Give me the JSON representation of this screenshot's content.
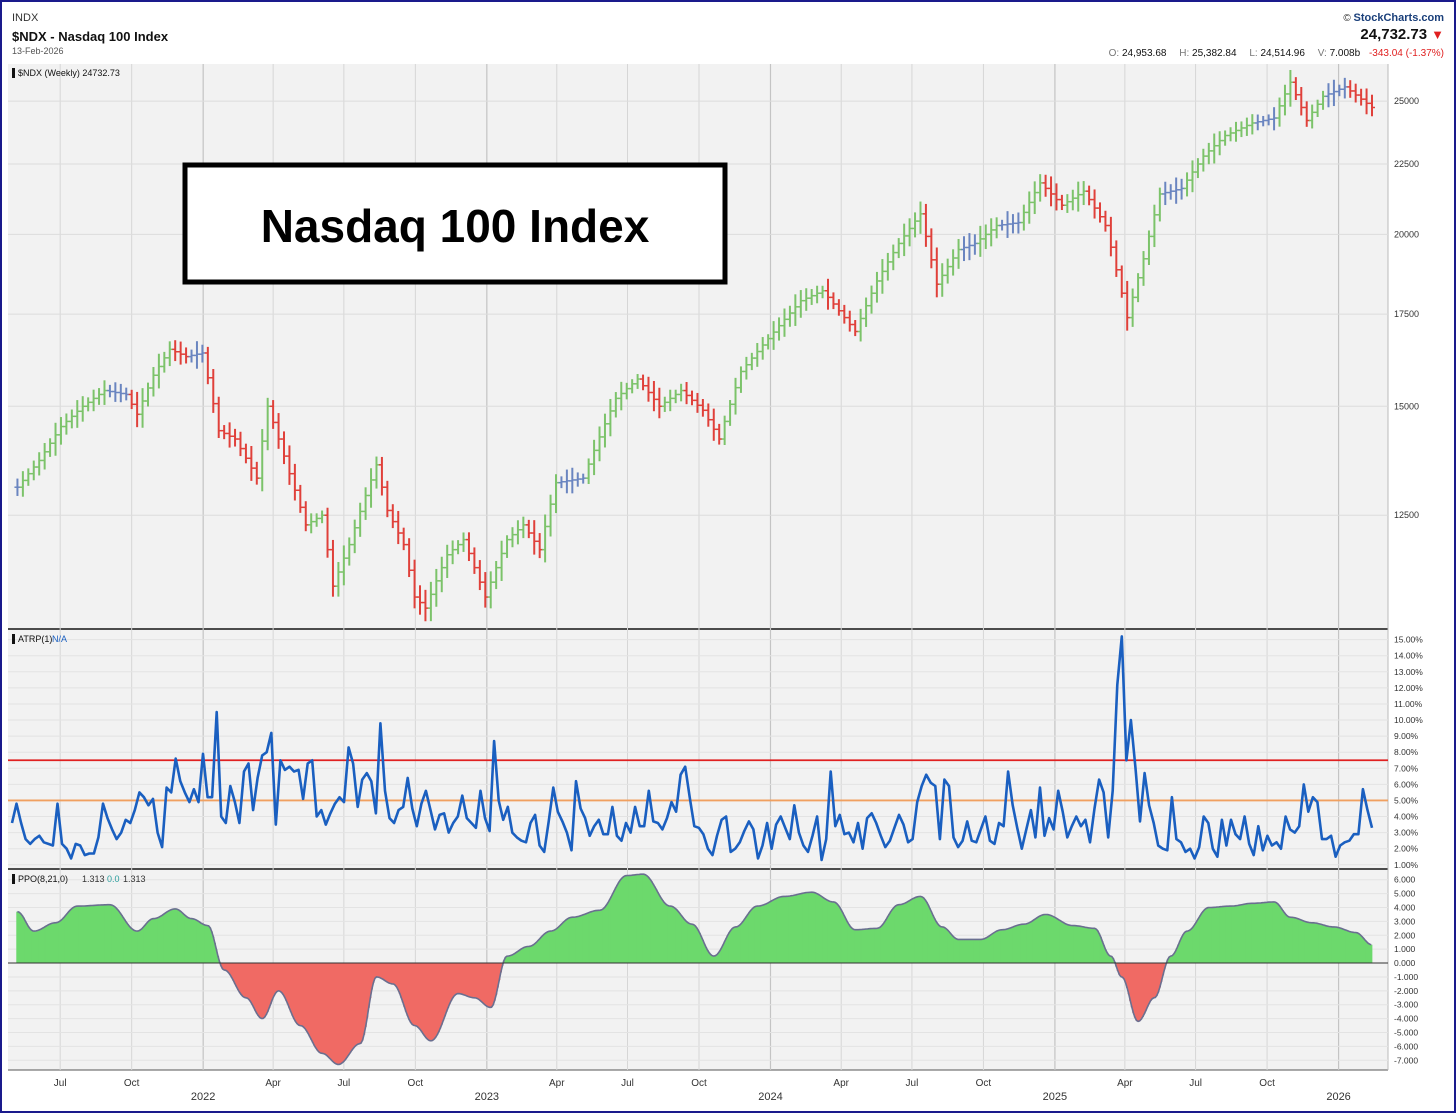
{
  "header": {
    "symbol_code": "INDX",
    "title": "$NDX - Nasdaq 100 Index",
    "date": "13-Feb-2026",
    "copyright": "©",
    "brand": "StockCharts.com",
    "last_price": "24,732.73",
    "ohlc": {
      "open_label": "O:",
      "open": "24,953.68",
      "high_label": "H:",
      "high": "25,382.84",
      "low_label": "L:",
      "low": "24,514.96",
      "volume_label": "V:",
      "volume": "7.008b",
      "change": "-343.04 (-1.37%)"
    },
    "colors": {
      "down": "#e02020",
      "brand": "#1a3f7a"
    }
  },
  "chart_data": [
    {
      "type": "ohlc-bar",
      "panel_label": "$NDX (Weekly) 24732.73",
      "annotation": "Nasdaq 100 Index",
      "y_scale": "log",
      "y_ticks": [
        12500,
        15000,
        17500,
        20000,
        22500,
        25000
      ],
      "y_tick_labels": [
        "12500",
        "15000",
        "17500",
        "20000",
        "22500",
        "25000"
      ],
      "colors": {
        "up": "#7cc36a",
        "down": "#e0403a",
        "neutral": "#6a85c0"
      },
      "weekly_close": [
        {
          "date": "2021-05-07",
          "close": 13100
        },
        {
          "date": "2021-06-04",
          "close": 13700
        },
        {
          "date": "2021-07-02",
          "close": 14500
        },
        {
          "date": "2021-07-30",
          "close": 15000
        },
        {
          "date": "2021-08-27",
          "close": 15400
        },
        {
          "date": "2021-09-24",
          "close": 15300
        },
        {
          "date": "2021-10-08",
          "close": 14800
        },
        {
          "date": "2021-10-29",
          "close": 15800
        },
        {
          "date": "2021-11-19",
          "close": 16500
        },
        {
          "date": "2021-12-10",
          "close": 16300
        },
        {
          "date": "2021-12-31",
          "close": 16400
        },
        {
          "date": "2022-01-21",
          "close": 14400
        },
        {
          "date": "2022-02-11",
          "close": 14200
        },
        {
          "date": "2022-03-11",
          "close": 13300
        },
        {
          "date": "2022-03-25",
          "close": 15000
        },
        {
          "date": "2022-04-22",
          "close": 13400
        },
        {
          "date": "2022-05-13",
          "close": 12300
        },
        {
          "date": "2022-06-03",
          "close": 12500
        },
        {
          "date": "2022-06-17",
          "close": 11100
        },
        {
          "date": "2022-07-08",
          "close": 11900
        },
        {
          "date": "2022-08-12",
          "close": 13600
        },
        {
          "date": "2022-08-26",
          "close": 12600
        },
        {
          "date": "2022-09-16",
          "close": 11900
        },
        {
          "date": "2022-09-30",
          "close": 10900
        },
        {
          "date": "2022-10-14",
          "close": 10700
        },
        {
          "date": "2022-11-11",
          "close": 11700
        },
        {
          "date": "2022-12-02",
          "close": 12000
        },
        {
          "date": "2022-12-30",
          "close": 10900
        },
        {
          "date": "2023-01-27",
          "close": 12000
        },
        {
          "date": "2023-02-17",
          "close": 12300
        },
        {
          "date": "2023-03-10",
          "close": 11800
        },
        {
          "date": "2023-03-31",
          "close": 13200
        },
        {
          "date": "2023-05-05",
          "close": 13300
        },
        {
          "date": "2023-06-16",
          "close": 15200
        },
        {
          "date": "2023-07-14",
          "close": 15700
        },
        {
          "date": "2023-08-11",
          "close": 15000
        },
        {
          "date": "2023-09-08",
          "close": 15400
        },
        {
          "date": "2023-10-06",
          "close": 14900
        },
        {
          "date": "2023-10-27",
          "close": 14200
        },
        {
          "date": "2023-11-24",
          "close": 15900
        },
        {
          "date": "2023-12-29",
          "close": 16800
        },
        {
          "date": "2024-02-09",
          "close": 17900
        },
        {
          "date": "2024-03-08",
          "close": 18200
        },
        {
          "date": "2024-04-19",
          "close": 17000
        },
        {
          "date": "2024-05-17",
          "close": 18500
        },
        {
          "date": "2024-06-14",
          "close": 19700
        },
        {
          "date": "2024-07-12",
          "close": 20700
        },
        {
          "date": "2024-08-02",
          "close": 18400
        },
        {
          "date": "2024-08-30",
          "close": 19500
        },
        {
          "date": "2024-09-20",
          "close": 19700
        },
        {
          "date": "2024-10-18",
          "close": 20300
        },
        {
          "date": "2024-11-15",
          "close": 20400
        },
        {
          "date": "2024-12-13",
          "close": 21800
        },
        {
          "date": "2025-01-10",
          "close": 21000
        },
        {
          "date": "2025-02-07",
          "close": 21500
        },
        {
          "date": "2025-03-07",
          "close": 20300
        },
        {
          "date": "2025-04-04",
          "close": 17400
        },
        {
          "date": "2025-04-25",
          "close": 19200
        },
        {
          "date": "2025-05-16",
          "close": 21400
        },
        {
          "date": "2025-06-13",
          "close": 21600
        },
        {
          "date": "2025-07-11",
          "close": 22800
        },
        {
          "date": "2025-08-08",
          "close": 23600
        },
        {
          "date": "2025-09-12",
          "close": 24100
        },
        {
          "date": "2025-10-10",
          "close": 24300
        },
        {
          "date": "2025-10-31",
          "close": 25800
        },
        {
          "date": "2025-11-21",
          "close": 24200
        },
        {
          "date": "2025-12-12",
          "close": 25200
        },
        {
          "date": "2026-01-09",
          "close": 25600
        },
        {
          "date": "2026-02-13",
          "close": 24732.73
        }
      ]
    },
    {
      "type": "line",
      "panel_label": "ATRP(1)",
      "panel_value": "N/A",
      "y_range": [
        0.8,
        15.6
      ],
      "y_tick_labels": [
        "1.00%",
        "2.00%",
        "3.00%",
        "4.00%",
        "5.00%",
        "6.00%",
        "7.00%",
        "8.00%",
        "9.00%",
        "10.00%",
        "11.00%",
        "12.00%",
        "13.00%",
        "14.00%",
        "15.00%"
      ],
      "reference_lines": [
        {
          "value": 7.5,
          "color": "#e02020"
        },
        {
          "value": 5.0,
          "color": "#f0a060"
        }
      ],
      "color": "#1a5fc0",
      "series_pct": [
        3.6,
        4.8,
        3.6,
        2.6,
        2.3,
        2.6,
        2.8,
        2.4,
        2.3,
        2.2,
        4.8,
        2.3,
        2.0,
        1.4,
        2.3,
        2.2,
        1.6,
        1.7,
        1.7,
        2.7,
        4.8,
        3.9,
        3.2,
        2.6,
        3.0,
        3.8,
        3.6,
        4.4,
        5.5,
        5.2,
        4.7,
        5.1,
        3.0,
        2.1,
        5.8,
        5.5,
        7.6,
        6.2,
        5.5,
        4.9,
        5.7,
        4.9,
        7.9,
        5.2,
        5.2,
        10.5,
        4.0,
        3.6,
        5.9,
        4.9,
        3.6,
        6.8,
        7.3,
        4.4,
        6.4,
        7.8,
        8.0,
        9.2,
        3.5,
        7.5,
        6.9,
        7.1,
        6.8,
        6.9,
        5.1,
        7.3,
        7.5,
        4.0,
        4.4,
        3.5,
        4.2,
        4.8,
        5.2,
        4.9,
        8.3,
        7.3,
        4.6,
        6.3,
        6.7,
        6.2,
        4.2,
        9.8,
        5.6,
        3.9,
        3.6,
        4.4,
        4.6,
        6.4,
        4.5,
        3.4,
        4.8,
        5.6,
        4.4,
        3.2,
        4.1,
        4.2,
        3.0,
        3.6,
        4.0,
        5.3,
        3.9,
        3.6,
        3.3,
        5.6,
        3.9,
        3.1,
        8.7,
        5.0,
        3.8,
        4.6,
        3.0,
        2.7,
        2.5,
        2.4,
        3.6,
        4.1,
        2.2,
        1.8,
        3.7,
        5.8,
        4.3,
        3.7,
        3.0,
        1.9,
        6.2,
        4.5,
        3.9,
        2.8,
        3.4,
        3.8,
        2.9,
        2.9,
        4.6,
        2.8,
        2.5,
        3.6,
        3.0,
        4.6,
        3.4,
        3.4,
        5.6,
        3.7,
        3.6,
        3.2,
        3.9,
        4.9,
        4.3,
        6.6,
        7.1,
        5.2,
        3.4,
        3.3,
        2.9,
        2.0,
        1.6,
        2.8,
        3.8,
        4.0,
        1.8,
        2.0,
        2.4,
        3.1,
        3.7,
        3.2,
        1.4,
        2.2,
        3.6,
        2.0,
        3.5,
        4.0,
        3.3,
        2.6,
        4.7,
        3.0,
        2.2,
        1.8,
        2.8,
        4.0,
        1.3,
        2.6,
        6.8,
        3.4,
        4.1,
        2.9,
        3.0,
        2.4,
        3.6,
        2.0,
        3.9,
        4.2,
        3.6,
        2.8,
        2.1,
        2.5,
        3.3,
        4.1,
        3.5,
        2.4,
        2.6,
        4.9,
        5.9,
        6.6,
        6.1,
        5.9,
        2.6,
        6.3,
        5.9,
        2.7,
        2.1,
        2.5,
        3.7,
        2.5,
        2.4,
        3.2,
        4.0,
        2.5,
        2.3,
        3.6,
        3.4,
        6.8,
        4.7,
        3.3,
        2.0,
        3.2,
        4.4,
        2.7,
        5.8,
        2.8,
        3.9,
        3.2,
        5.6,
        4.3,
        2.7,
        3.4,
        4.0,
        3.4,
        3.8,
        2.4,
        4.5,
        6.3,
        5.5,
        2.7,
        5.6,
        12.2,
        15.2,
        7.5,
        10.0,
        7.0,
        3.7,
        6.7,
        4.7,
        3.6,
        2.2,
        2.0,
        1.9,
        5.2,
        2.6,
        2.4,
        1.8,
        2.0,
        1.4,
        2.1,
        4.0,
        3.6,
        2.0,
        1.5,
        3.8,
        2.2,
        3.8,
        2.9,
        2.6,
        4.0,
        2.3,
        1.6,
        3.4,
        1.9,
        2.8,
        2.2,
        2.4,
        2.0,
        4.0,
        3.2,
        3.0,
        3.4,
        6.0,
        4.3,
        5.2,
        4.9,
        2.6,
        2.6,
        2.8,
        1.5,
        2.2,
        2.4,
        2.5,
        2.9,
        2.9,
        5.7,
        4.4,
        3.3
      ]
    },
    {
      "type": "histogram",
      "panel_label": "PPO(8,21,0)",
      "panel_values": [
        "1.313",
        "0.0",
        "1.313"
      ],
      "y_range": [
        -7.7,
        6.7
      ],
      "y_tick_labels": [
        "6.000",
        "5.000",
        "4.000",
        "3.000",
        "2.000",
        "1.000",
        "0.000",
        "-1.000",
        "-2.000",
        "-3.000",
        "-4.000",
        "-5.000",
        "-6.000",
        "-7.000"
      ],
      "colors": {
        "positive": "#6cd96c",
        "negative": "#f06a64",
        "outline": "#6a6f90"
      },
      "anchors": [
        {
          "date": "2021-05-07",
          "value": 3.7
        },
        {
          "date": "2021-05-28",
          "value": 2.3
        },
        {
          "date": "2021-06-25",
          "value": 2.9
        },
        {
          "date": "2021-07-23",
          "value": 4.1
        },
        {
          "date": "2021-09-03",
          "value": 4.2
        },
        {
          "date": "2021-10-08",
          "value": 2.3
        },
        {
          "date": "2021-10-29",
          "value": 3.2
        },
        {
          "date": "2021-11-26",
          "value": 3.9
        },
        {
          "date": "2021-12-17",
          "value": 3.2
        },
        {
          "date": "2022-01-07",
          "value": 2.7
        },
        {
          "date": "2022-01-28",
          "value": -0.5
        },
        {
          "date": "2022-02-25",
          "value": -2.5
        },
        {
          "date": "2022-03-18",
          "value": -4.0
        },
        {
          "date": "2022-04-08",
          "value": -2.0
        },
        {
          "date": "2022-05-06",
          "value": -4.5
        },
        {
          "date": "2022-06-03",
          "value": -6.5
        },
        {
          "date": "2022-06-24",
          "value": -7.3
        },
        {
          "date": "2022-07-22",
          "value": -5.8
        },
        {
          "date": "2022-08-12",
          "value": -1.0
        },
        {
          "date": "2022-09-02",
          "value": -1.5
        },
        {
          "date": "2022-09-30",
          "value": -4.5
        },
        {
          "date": "2022-10-21",
          "value": -5.6
        },
        {
          "date": "2022-11-25",
          "value": -2.2
        },
        {
          "date": "2022-12-16",
          "value": -2.5
        },
        {
          "date": "2023-01-06",
          "value": -3.2
        },
        {
          "date": "2023-01-27",
          "value": 0.5
        },
        {
          "date": "2023-02-24",
          "value": 1.2
        },
        {
          "date": "2023-03-24",
          "value": 2.3
        },
        {
          "date": "2023-04-21",
          "value": 3.3
        },
        {
          "date": "2023-05-26",
          "value": 3.8
        },
        {
          "date": "2023-06-30",
          "value": 6.3
        },
        {
          "date": "2023-07-21",
          "value": 6.4
        },
        {
          "date": "2023-08-25",
          "value": 4.1
        },
        {
          "date": "2023-09-22",
          "value": 2.8
        },
        {
          "date": "2023-10-20",
          "value": 0.5
        },
        {
          "date": "2023-11-17",
          "value": 2.6
        },
        {
          "date": "2023-12-15",
          "value": 4.1
        },
        {
          "date": "2024-01-19",
          "value": 4.8
        },
        {
          "date": "2024-02-23",
          "value": 5.1
        },
        {
          "date": "2024-03-22",
          "value": 4.4
        },
        {
          "date": "2024-04-19",
          "value": 2.4
        },
        {
          "date": "2024-05-17",
          "value": 2.5
        },
        {
          "date": "2024-06-14",
          "value": 4.2
        },
        {
          "date": "2024-07-12",
          "value": 4.8
        },
        {
          "date": "2024-08-09",
          "value": 2.6
        },
        {
          "date": "2024-08-30",
          "value": 1.7
        },
        {
          "date": "2024-09-27",
          "value": 1.7
        },
        {
          "date": "2024-10-25",
          "value": 2.4
        },
        {
          "date": "2024-11-22",
          "value": 2.8
        },
        {
          "date": "2024-12-20",
          "value": 3.5
        },
        {
          "date": "2025-01-24",
          "value": 2.7
        },
        {
          "date": "2025-02-21",
          "value": 2.5
        },
        {
          "date": "2025-03-14",
          "value": 0.5
        },
        {
          "date": "2025-03-28",
          "value": -1.0
        },
        {
          "date": "2025-04-18",
          "value": -4.2
        },
        {
          "date": "2025-05-09",
          "value": -2.5
        },
        {
          "date": "2025-05-30",
          "value": 0.5
        },
        {
          "date": "2025-06-20",
          "value": 2.3
        },
        {
          "date": "2025-07-18",
          "value": 4.0
        },
        {
          "date": "2025-08-15",
          "value": 4.1
        },
        {
          "date": "2025-09-12",
          "value": 4.3
        },
        {
          "date": "2025-10-10",
          "value": 4.4
        },
        {
          "date": "2025-10-31",
          "value": 3.3
        },
        {
          "date": "2025-11-28",
          "value": 2.9
        },
        {
          "date": "2025-12-26",
          "value": 2.6
        },
        {
          "date": "2026-01-23",
          "value": 2.2
        },
        {
          "date": "2026-02-13",
          "value": 1.313
        }
      ]
    }
  ],
  "x_axis": {
    "months": [
      {
        "date": "2021-07-01",
        "label": "Jul"
      },
      {
        "date": "2021-10-01",
        "label": "Oct"
      },
      {
        "date": "2022-04-01",
        "label": "Apr"
      },
      {
        "date": "2022-07-01",
        "label": "Jul"
      },
      {
        "date": "2022-10-01",
        "label": "Oct"
      },
      {
        "date": "2023-04-01",
        "label": "Apr"
      },
      {
        "date": "2023-07-01",
        "label": "Jul"
      },
      {
        "date": "2023-10-01",
        "label": "Oct"
      },
      {
        "date": "2024-04-01",
        "label": "Apr"
      },
      {
        "date": "2024-07-01",
        "label": "Jul"
      },
      {
        "date": "2024-10-01",
        "label": "Oct"
      },
      {
        "date": "2025-04-01",
        "label": "Apr"
      },
      {
        "date": "2025-07-01",
        "label": "Jul"
      },
      {
        "date": "2025-10-01",
        "label": "Oct"
      }
    ],
    "years": [
      {
        "date": "2022-01-01",
        "label": "2022"
      },
      {
        "date": "2023-01-01",
        "label": "2023"
      },
      {
        "date": "2024-01-01",
        "label": "2024"
      },
      {
        "date": "2025-01-01",
        "label": "2025"
      },
      {
        "date": "2026-01-01",
        "label": "2026"
      }
    ],
    "range": [
      "2021-04-30",
      "2026-02-13"
    ]
  }
}
